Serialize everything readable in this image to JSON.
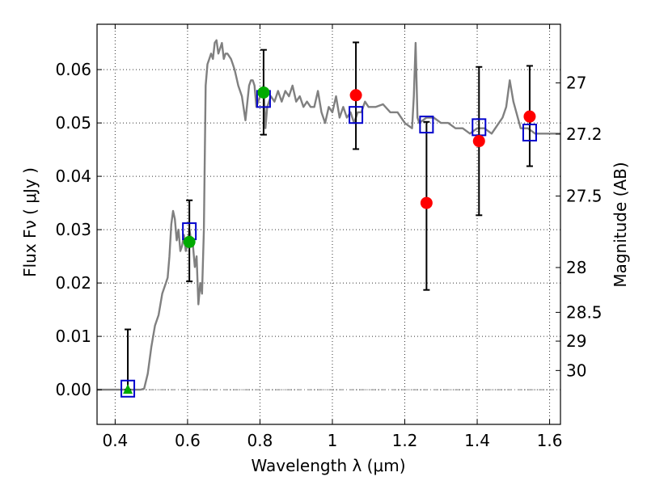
{
  "chart_data": {
    "type": "scatter",
    "xlabel": "Wavelength  λ (μm)",
    "ylabel": "Flux  Fν  ( μJy )",
    "y2label": "Magnitude (AB)",
    "xlim": [
      0.35,
      1.63
    ],
    "ylim": [
      -0.0065,
      0.0685
    ],
    "grid": true,
    "x_ticks": [
      0.4,
      0.6,
      0.8,
      1.0,
      1.2,
      1.4,
      1.6
    ],
    "x_tick_labels": [
      "0.4",
      "0.6",
      "0.8",
      "1",
      "1.2",
      "1.4",
      "1.6"
    ],
    "y_ticks": [
      0.0,
      0.01,
      0.02,
      0.03,
      0.04,
      0.05,
      0.06
    ],
    "y_tick_labels": [
      "0.00",
      "0.01",
      "0.02",
      "0.03",
      "0.04",
      "0.05",
      "0.06"
    ],
    "mag_ticks": [
      {
        "label": "27",
        "flux": 0.0575
      },
      {
        "label": "27.2",
        "flux": 0.0479
      },
      {
        "label": "27.5",
        "flux": 0.0363
      },
      {
        "label": "28",
        "flux": 0.0229
      },
      {
        "label": "28.5",
        "flux": 0.0145
      },
      {
        "label": "29",
        "flux": 0.0091
      },
      {
        "label": "30",
        "flux": 0.0036
      }
    ],
    "colors": {
      "sed": "#808080",
      "model_box": "#0000cc",
      "green_points": "#00aa00",
      "red_points": "#ff0000",
      "errorbar": "#000000"
    },
    "series": [
      {
        "kind": "sed-line",
        "x": [
          0.35,
          0.47,
          0.48,
          0.49,
          0.5,
          0.51,
          0.52,
          0.53,
          0.54,
          0.545,
          0.55,
          0.555,
          0.56,
          0.565,
          0.57,
          0.575,
          0.58,
          0.585,
          0.59,
          0.595,
          0.6,
          0.605,
          0.61,
          0.615,
          0.62,
          0.625,
          0.63,
          0.635,
          0.64,
          0.645,
          0.65,
          0.655,
          0.66,
          0.665,
          0.67,
          0.675,
          0.68,
          0.685,
          0.69,
          0.695,
          0.7,
          0.705,
          0.71,
          0.715,
          0.72,
          0.725,
          0.73,
          0.74,
          0.75,
          0.76,
          0.77,
          0.775,
          0.78,
          0.785,
          0.79,
          0.8,
          0.81,
          0.815,
          0.82,
          0.83,
          0.84,
          0.85,
          0.86,
          0.87,
          0.88,
          0.89,
          0.9,
          0.91,
          0.92,
          0.93,
          0.94,
          0.95,
          0.96,
          0.97,
          0.98,
          0.99,
          1.0,
          1.01,
          1.02,
          1.03,
          1.04,
          1.05,
          1.06,
          1.07,
          1.08,
          1.09,
          1.1,
          1.12,
          1.14,
          1.16,
          1.18,
          1.2,
          1.22,
          1.225,
          1.23,
          1.235,
          1.24,
          1.26,
          1.28,
          1.3,
          1.32,
          1.34,
          1.36,
          1.38,
          1.4,
          1.42,
          1.44,
          1.45,
          1.46,
          1.47,
          1.48,
          1.49,
          1.5,
          1.52,
          1.54,
          1.56,
          1.58,
          1.6,
          1.63
        ],
        "y": [
          0.0,
          0.0,
          0.0002,
          0.003,
          0.008,
          0.012,
          0.014,
          0.018,
          0.02,
          0.021,
          0.025,
          0.031,
          0.0335,
          0.032,
          0.028,
          0.03,
          0.026,
          0.027,
          0.029,
          0.026,
          0.027,
          0.03,
          0.028,
          0.027,
          0.023,
          0.025,
          0.016,
          0.02,
          0.018,
          0.03,
          0.057,
          0.061,
          0.062,
          0.063,
          0.062,
          0.065,
          0.0655,
          0.063,
          0.064,
          0.065,
          0.062,
          0.063,
          0.063,
          0.0625,
          0.062,
          0.061,
          0.06,
          0.057,
          0.055,
          0.0505,
          0.057,
          0.058,
          0.058,
          0.057,
          0.053,
          0.055,
          0.057,
          0.049,
          0.053,
          0.055,
          0.054,
          0.056,
          0.054,
          0.056,
          0.055,
          0.057,
          0.054,
          0.055,
          0.053,
          0.054,
          0.053,
          0.053,
          0.056,
          0.052,
          0.05,
          0.053,
          0.052,
          0.055,
          0.051,
          0.053,
          0.051,
          0.052,
          0.05,
          0.052,
          0.052,
          0.054,
          0.053,
          0.053,
          0.0535,
          0.052,
          0.052,
          0.05,
          0.049,
          0.055,
          0.065,
          0.051,
          0.05,
          0.051,
          0.051,
          0.05,
          0.05,
          0.049,
          0.049,
          0.048,
          0.049,
          0.049,
          0.048,
          0.049,
          0.05,
          0.051,
          0.053,
          0.058,
          0.054,
          0.049,
          0.049,
          0.048,
          0.048,
          0.048,
          0.048
        ]
      },
      {
        "kind": "model-boxes",
        "x": [
          0.435,
          0.605,
          0.81,
          1.065,
          1.26,
          1.405,
          1.545
        ],
        "y": [
          0.0002,
          0.0297,
          0.0545,
          0.0515,
          0.0497,
          0.0492,
          0.0482
        ]
      },
      {
        "kind": "green-points",
        "x": [
          0.605,
          0.81
        ],
        "y": [
          0.0277,
          0.0557
        ]
      },
      {
        "kind": "green-triangle",
        "x": [
          0.435
        ],
        "y": [
          0.0
        ]
      },
      {
        "kind": "red-points",
        "x": [
          1.065,
          1.26,
          1.405,
          1.545
        ],
        "y": [
          0.0552,
          0.035,
          0.0466,
          0.0512
        ]
      },
      {
        "kind": "errorbars",
        "x": [
          0.435,
          0.605,
          0.81,
          1.065,
          1.26,
          1.405,
          1.545
        ],
        "ylow": [
          0.0,
          0.0203,
          0.0478,
          0.0451,
          0.0187,
          0.0327,
          0.0419
        ],
        "yhigh": [
          0.0113,
          0.0355,
          0.0637,
          0.0651,
          0.0502,
          0.0605,
          0.0607
        ]
      }
    ]
  }
}
